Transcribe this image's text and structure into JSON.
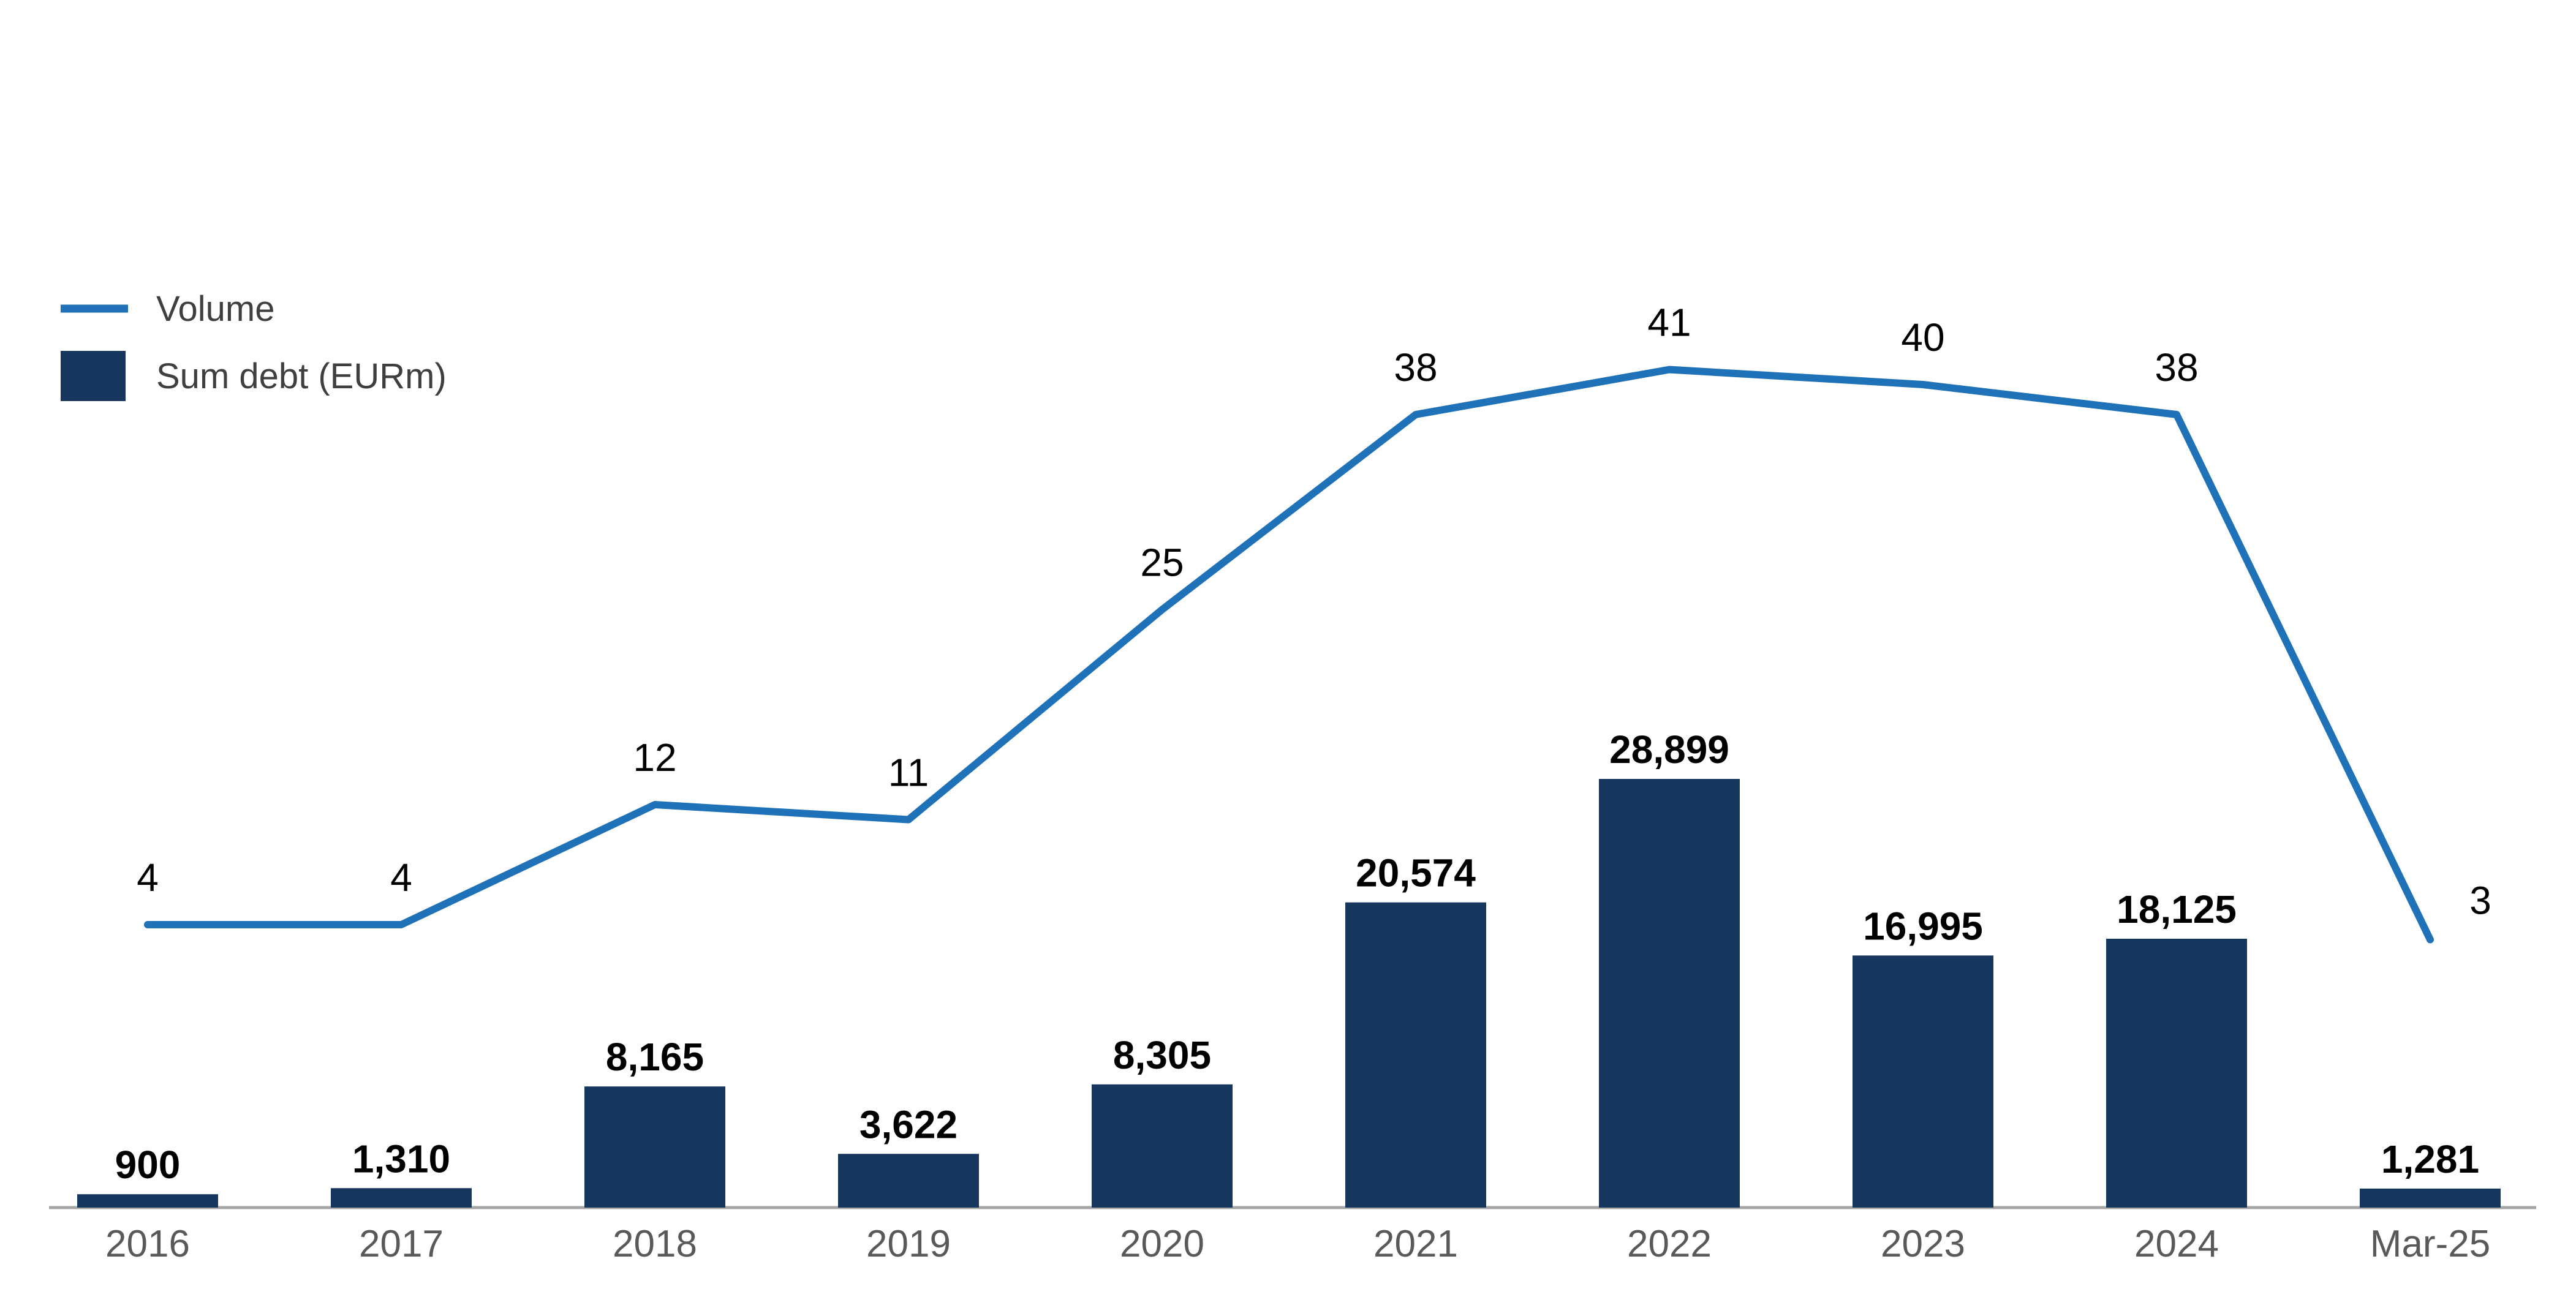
{
  "chart_data": {
    "type": "combo",
    "title": "",
    "categories": [
      "2016",
      "2017",
      "2018",
      "2019",
      "2020",
      "2021",
      "2022",
      "2023",
      "2024",
      "Mar-25"
    ],
    "series": [
      {
        "name": "Sum debt (EURm)",
        "type": "bar",
        "color": "#17365D",
        "values": [
          900,
          1310,
          8165,
          3622,
          8305,
          20574,
          28899,
          16995,
          18125,
          1281
        ],
        "labels": [
          "900",
          "1,310",
          "8,165",
          "3,622",
          "8,305",
          "20,574",
          "28,899",
          "16,995",
          "18,125",
          "1,281"
        ]
      },
      {
        "name": "Volume",
        "type": "line",
        "color": "#1F72B8",
        "values": [
          4,
          4,
          12,
          11,
          25,
          38,
          41,
          40,
          38,
          3
        ],
        "labels": [
          "4",
          "4",
          "12",
          "11",
          "25",
          "38",
          "41",
          "40",
          "38",
          "3"
        ]
      }
    ],
    "legend_position": "top-left",
    "grid": false,
    "axis": {
      "baseline_color": "#A6A6A6",
      "category_label_color": "#595959"
    },
    "ylim_bar": [
      0,
      30000
    ],
    "ylim_line": [
      0,
      45
    ]
  }
}
